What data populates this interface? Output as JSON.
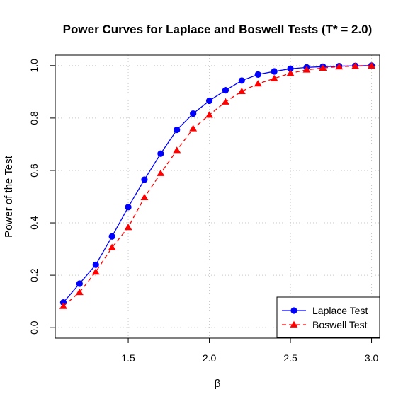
{
  "chart_data": {
    "type": "line",
    "title": "Power Curves for Laplace and Boswell Tests (T* = 2.0)",
    "xlabel": "β",
    "ylabel": "Power of the Test",
    "xlim": [
      1.05,
      3.05
    ],
    "ylim": [
      -0.04,
      1.04
    ],
    "xticks": [
      1.5,
      2.0,
      2.5,
      3.0
    ],
    "xtick_labels": [
      "1.5",
      "2.0",
      "2.5",
      "3.0"
    ],
    "yticks": [
      0.0,
      0.2,
      0.4,
      0.6,
      0.8,
      1.0
    ],
    "ytick_labels": [
      "0.0",
      "0.2",
      "0.4",
      "0.6",
      "0.8",
      "1.0"
    ],
    "grid": true,
    "legend_position": "bottom-right",
    "x": [
      1.1,
      1.2,
      1.3,
      1.4,
      1.5,
      1.6,
      1.7,
      1.8,
      1.9,
      2.0,
      2.1,
      2.2,
      2.3,
      2.4,
      2.5,
      2.6,
      2.7,
      2.8,
      2.9,
      3.0
    ],
    "series": [
      {
        "name": "Laplace Test",
        "color": "#0000ff",
        "line_style": "solid",
        "marker": "circle",
        "values": [
          0.096,
          0.168,
          0.24,
          0.348,
          0.46,
          0.565,
          0.664,
          0.755,
          0.817,
          0.866,
          0.906,
          0.943,
          0.966,
          0.978,
          0.988,
          0.993,
          0.996,
          0.998,
          0.999,
          1.0
        ]
      },
      {
        "name": "Boswell Test",
        "color": "#ff0000",
        "line_style": "dashed",
        "marker": "triangle",
        "values": [
          0.082,
          0.135,
          0.213,
          0.306,
          0.383,
          0.497,
          0.589,
          0.677,
          0.76,
          0.812,
          0.862,
          0.902,
          0.931,
          0.951,
          0.971,
          0.984,
          0.991,
          0.996,
          0.998,
          0.999
        ]
      }
    ]
  }
}
